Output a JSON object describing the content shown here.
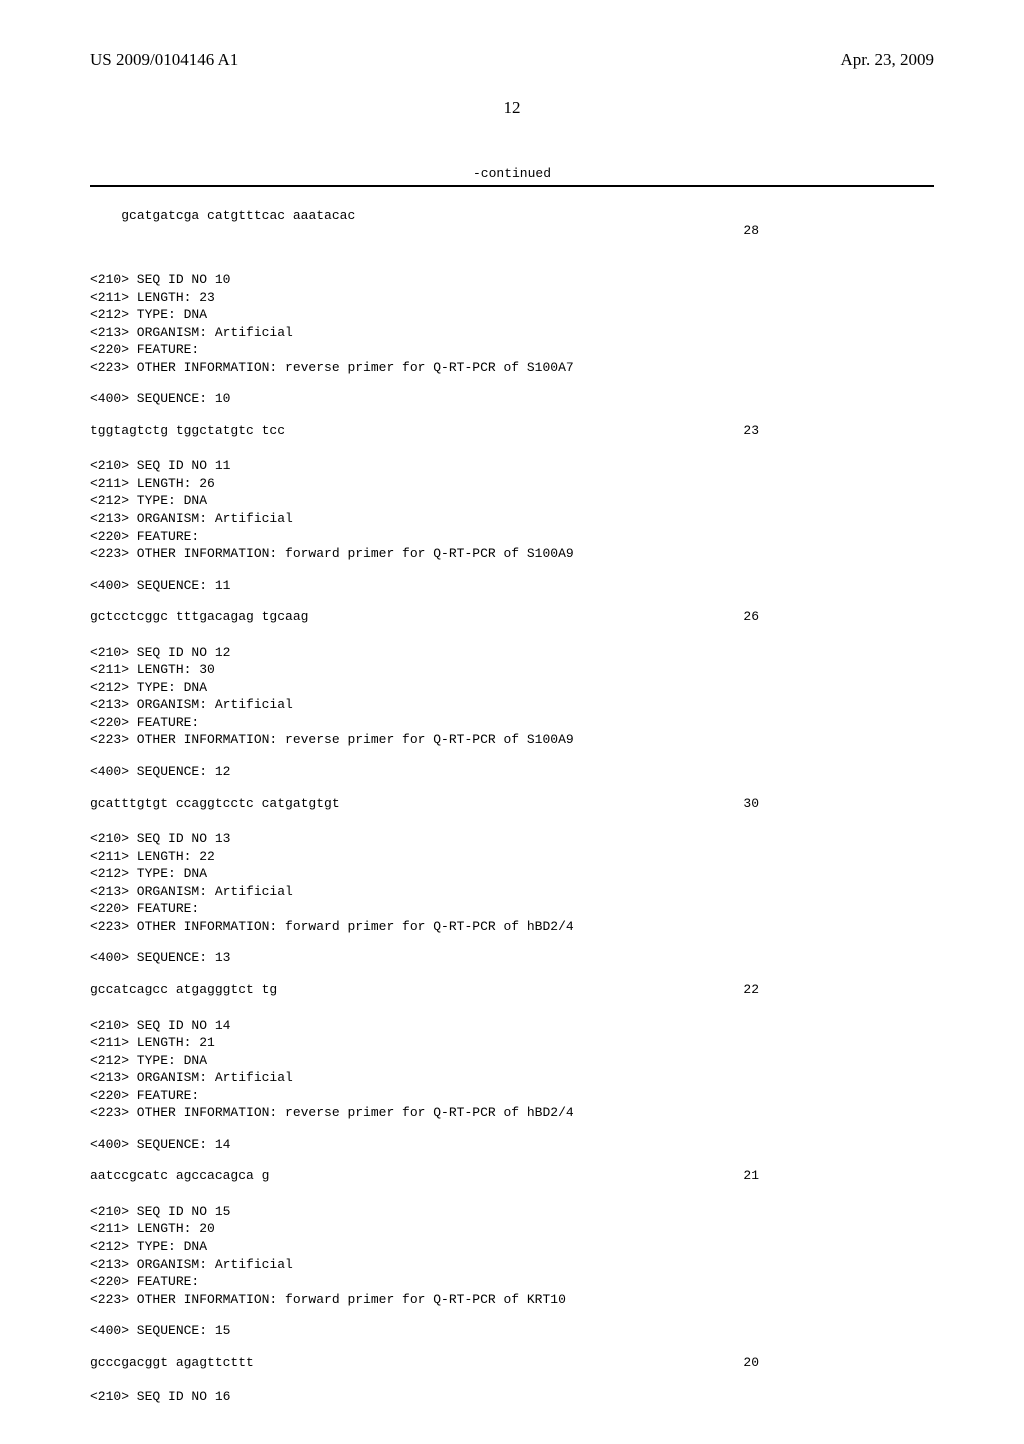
{
  "header": {
    "pub_number": "US 2009/0104146 A1",
    "pub_date": "Apr. 23, 2009",
    "page_number": "12"
  },
  "continued_label": "-continued",
  "initial": {
    "sequence": "gcatgatcga catgtttcac aaatacac",
    "length": "28"
  },
  "entries": [
    {
      "seq_id": "<210> SEQ ID NO 10",
      "length": "<211> LENGTH: 23",
      "type": "<212> TYPE: DNA",
      "organism": "<213> ORGANISM: Artificial",
      "feature": "<220> FEATURE:",
      "other": "<223> OTHER INFORMATION: reverse primer for Q-RT-PCR of S100A7",
      "seq_label": "<400> SEQUENCE: 10",
      "sequence": "tggtagtctg tggctatgtc tcc",
      "seq_len": "23"
    },
    {
      "seq_id": "<210> SEQ ID NO 11",
      "length": "<211> LENGTH: 26",
      "type": "<212> TYPE: DNA",
      "organism": "<213> ORGANISM: Artificial",
      "feature": "<220> FEATURE:",
      "other": "<223> OTHER INFORMATION: forward primer for Q-RT-PCR of S100A9",
      "seq_label": "<400> SEQUENCE: 11",
      "sequence": "gctcctcggc tttgacagag tgcaag",
      "seq_len": "26"
    },
    {
      "seq_id": "<210> SEQ ID NO 12",
      "length": "<211> LENGTH: 30",
      "type": "<212> TYPE: DNA",
      "organism": "<213> ORGANISM: Artificial",
      "feature": "<220> FEATURE:",
      "other": "<223> OTHER INFORMATION: reverse primer for Q-RT-PCR of S100A9",
      "seq_label": "<400> SEQUENCE: 12",
      "sequence": "gcatttgtgt ccaggtcctc catgatgtgt",
      "seq_len": "30"
    },
    {
      "seq_id": "<210> SEQ ID NO 13",
      "length": "<211> LENGTH: 22",
      "type": "<212> TYPE: DNA",
      "organism": "<213> ORGANISM: Artificial",
      "feature": "<220> FEATURE:",
      "other": "<223> OTHER INFORMATION: forward primer for Q-RT-PCR of hBD2/4",
      "seq_label": "<400> SEQUENCE: 13",
      "sequence": "gccatcagcc atgagggtct tg",
      "seq_len": "22"
    },
    {
      "seq_id": "<210> SEQ ID NO 14",
      "length": "<211> LENGTH: 21",
      "type": "<212> TYPE: DNA",
      "organism": "<213> ORGANISM: Artificial",
      "feature": "<220> FEATURE:",
      "other": "<223> OTHER INFORMATION: reverse primer for Q-RT-PCR of hBD2/4",
      "seq_label": "<400> SEQUENCE: 14",
      "sequence": "aatccgcatc agccacagca g",
      "seq_len": "21"
    },
    {
      "seq_id": "<210> SEQ ID NO 15",
      "length": "<211> LENGTH: 20",
      "type": "<212> TYPE: DNA",
      "organism": "<213> ORGANISM: Artificial",
      "feature": "<220> FEATURE:",
      "other": "<223> OTHER INFORMATION: forward primer for Q-RT-PCR of KRT10",
      "seq_label": "<400> SEQUENCE: 15",
      "sequence": "gcccgacggt agagttcttt",
      "seq_len": "20"
    }
  ],
  "trailing_meta": "<210> SEQ ID NO 16"
}
